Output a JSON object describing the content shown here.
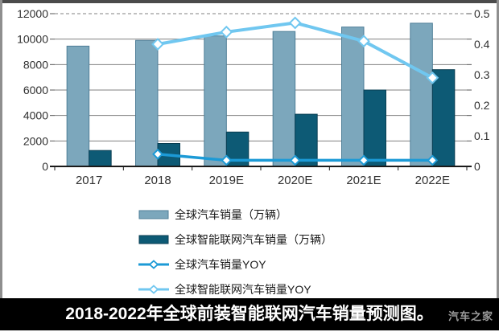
{
  "chart_data": {
    "type": "combo_bar_line",
    "title": "",
    "categories": [
      "2017",
      "2018",
      "2019E",
      "2020E",
      "2021E",
      "2022E"
    ],
    "series": [
      {
        "name": "全球汽车销量（万辆）",
        "type": "bar",
        "axis": "left",
        "color": "#7CA7BC",
        "border": "#4E7E97",
        "values": [
          9450,
          9900,
          10250,
          10600,
          10950,
          11250
        ]
      },
      {
        "name": "全球智能联网汽车销量（万辆）",
        "type": "bar",
        "axis": "left",
        "color": "#0D5A75",
        "border": "#093E52",
        "values": [
          1250,
          1800,
          2700,
          4100,
          6000,
          7600
        ]
      },
      {
        "name": "全球汽车销量YOY",
        "type": "line",
        "axis": "right",
        "color": "#1C9AD6",
        "marker": "diamond",
        "values": [
          null,
          0.04,
          0.02,
          0.02,
          0.02,
          0.02
        ]
      },
      {
        "name": "全球智能联网汽车销量YOY",
        "type": "line",
        "axis": "right",
        "color": "#70C7F0",
        "marker": "diamond",
        "values": [
          null,
          0.4,
          0.44,
          0.47,
          0.41,
          0.29
        ]
      }
    ],
    "left_axis": {
      "min": 0,
      "max": 12000,
      "step": 2000,
      "labels": [
        "12000",
        "10000",
        "8000",
        "6000",
        "4000",
        "2000",
        "0"
      ]
    },
    "right_axis": {
      "min": 0,
      "max": 0.5,
      "step": 0.1,
      "labels": [
        "0.5",
        "0.4",
        "0.3",
        "0.2",
        "0.1",
        "0"
      ]
    },
    "grid": true,
    "grid_color": "#808080",
    "top_gridline_dashed": true,
    "legend_position": "bottom-left"
  },
  "footer": {
    "title": "2018-2022年全球前装智能联网汽车销量预测图。",
    "watermark": "汽车之家"
  }
}
